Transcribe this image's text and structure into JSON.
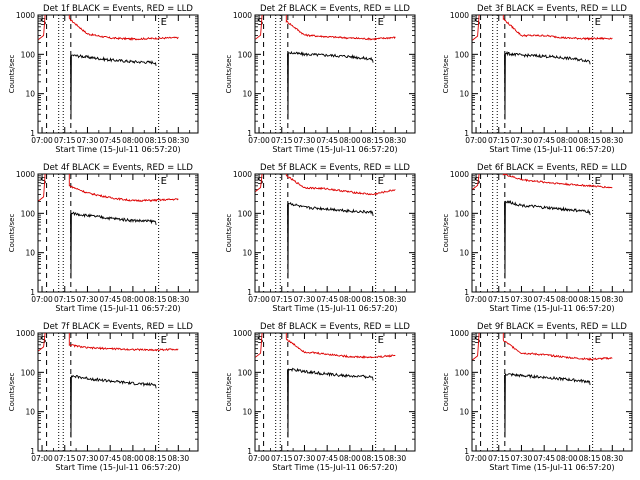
{
  "chart_data": [
    {
      "type": "line",
      "title": "Det 1f BLACK = Events, RED = LLD",
      "xlabel": "Start Time (15-Jul-11 06:57:20)",
      "ylabel": "Counts/sec",
      "y_scale": "log",
      "ylim": [
        1,
        1000
      ],
      "y_ticks": [
        "1",
        "10",
        "100",
        "1000"
      ],
      "x_ticks": [
        "07:00",
        "07:15",
        "07:30",
        "07:45",
        "08:00",
        "08:15",
        "08:30"
      ],
      "grid": false,
      "markers": {
        "start_label": "S",
        "end_label": "E"
      },
      "series": [
        {
          "color": "#dd0000",
          "shape": [
            {
              "t": "07:18",
              "v": 800
            },
            {
              "t": "07:30",
              "v": 330
            },
            {
              "t": "07:45",
              "v": 260
            },
            {
              "t": "08:00",
              "v": 245
            },
            {
              "t": "08:15",
              "v": 255
            },
            {
              "t": "08:30",
              "v": 265
            }
          ]
        },
        {
          "color": "#000000",
          "shape": [
            {
              "t": "07:20",
              "v": 95
            },
            {
              "t": "07:30",
              "v": 85
            },
            {
              "t": "07:45",
              "v": 72
            },
            {
              "t": "08:00",
              "v": 65
            },
            {
              "t": "08:15",
              "v": 62
            }
          ]
        }
      ]
    },
    {
      "type": "line",
      "title": "Det 2f BLACK = Events, RED = LLD",
      "xlabel": "Start Time (15-Jul-11 06:57:20)",
      "ylabel": "Counts/sec",
      "y_scale": "log",
      "ylim": [
        1,
        1000
      ],
      "y_ticks": [
        "1",
        "10",
        "100",
        "1000"
      ],
      "x_ticks": [
        "07:00",
        "07:15",
        "07:30",
        "07:45",
        "08:00",
        "08:15",
        "08:30"
      ],
      "grid": false,
      "markers": {
        "start_label": "S",
        "end_label": "E"
      },
      "series": [
        {
          "color": "#dd0000",
          "shape": [
            {
              "t": "07:18",
              "v": 700
            },
            {
              "t": "07:30",
              "v": 310
            },
            {
              "t": "07:45",
              "v": 280
            },
            {
              "t": "08:00",
              "v": 260
            },
            {
              "t": "08:15",
              "v": 245
            },
            {
              "t": "08:30",
              "v": 270
            }
          ]
        },
        {
          "color": "#000000",
          "shape": [
            {
              "t": "07:20",
              "v": 110
            },
            {
              "t": "07:30",
              "v": 100
            },
            {
              "t": "07:45",
              "v": 95
            },
            {
              "t": "08:00",
              "v": 88
            },
            {
              "t": "08:15",
              "v": 75
            }
          ]
        }
      ]
    },
    {
      "type": "line",
      "title": "Det 3f BLACK = Events, RED = LLD",
      "xlabel": "Start Time (15-Jul-11 06:57:20)",
      "ylabel": "Counts/sec",
      "y_scale": "log",
      "ylim": [
        1,
        1000
      ],
      "y_ticks": [
        "1",
        "10",
        "100",
        "1000"
      ],
      "x_ticks": [
        "07:00",
        "07:15",
        "07:30",
        "07:45",
        "08:00",
        "08:15",
        "08:30"
      ],
      "grid": false,
      "markers": {
        "start_label": "S",
        "end_label": "E"
      },
      "series": [
        {
          "color": "#dd0000",
          "shape": [
            {
              "t": "07:18",
              "v": 800
            },
            {
              "t": "07:30",
              "v": 300
            },
            {
              "t": "07:45",
              "v": 300
            },
            {
              "t": "08:00",
              "v": 260
            },
            {
              "t": "08:15",
              "v": 250
            },
            {
              "t": "08:30",
              "v": 255
            }
          ]
        },
        {
          "color": "#000000",
          "shape": [
            {
              "t": "07:20",
              "v": 105
            },
            {
              "t": "07:30",
              "v": 95
            },
            {
              "t": "07:45",
              "v": 90
            },
            {
              "t": "08:00",
              "v": 80
            },
            {
              "t": "08:15",
              "v": 68
            }
          ]
        }
      ]
    },
    {
      "type": "line",
      "title": "Det 4f BLACK = Events, RED = LLD",
      "xlabel": "Start Time (15-Jul-11 06:57:20)",
      "ylabel": "Counts/sec",
      "y_scale": "log",
      "ylim": [
        1,
        1000
      ],
      "y_ticks": [
        "1",
        "10",
        "100",
        "1000"
      ],
      "x_ticks": [
        "07:00",
        "07:15",
        "07:30",
        "07:45",
        "08:00",
        "08:15",
        "08:30"
      ],
      "grid": false,
      "markers": {
        "start_label": "S",
        "end_label": "E"
      },
      "series": [
        {
          "color": "#dd0000",
          "shape": [
            {
              "t": "07:18",
              "v": 500
            },
            {
              "t": "07:30",
              "v": 330
            },
            {
              "t": "07:45",
              "v": 250
            },
            {
              "t": "08:00",
              "v": 210
            },
            {
              "t": "08:15",
              "v": 215
            },
            {
              "t": "08:30",
              "v": 230
            }
          ]
        },
        {
          "color": "#000000",
          "shape": [
            {
              "t": "07:20",
              "v": 100
            },
            {
              "t": "07:30",
              "v": 88
            },
            {
              "t": "07:45",
              "v": 75
            },
            {
              "t": "08:00",
              "v": 66
            },
            {
              "t": "08:15",
              "v": 62
            }
          ]
        }
      ]
    },
    {
      "type": "line",
      "title": "Det 5f BLACK = Events, RED = LLD",
      "xlabel": "Start Time (15-Jul-11 06:57:20)",
      "ylabel": "Counts/sec",
      "y_scale": "log",
      "ylim": [
        1,
        1000
      ],
      "y_ticks": [
        "1",
        "10",
        "100",
        "1000"
      ],
      "x_ticks": [
        "07:00",
        "07:15",
        "07:30",
        "07:45",
        "08:00",
        "08:15",
        "08:30"
      ],
      "grid": false,
      "markers": {
        "start_label": "S",
        "end_label": "E"
      },
      "series": [
        {
          "color": "#dd0000",
          "shape": [
            {
              "t": "07:18",
              "v": 900
            },
            {
              "t": "07:30",
              "v": 450
            },
            {
              "t": "07:45",
              "v": 420
            },
            {
              "t": "08:00",
              "v": 350
            },
            {
              "t": "08:15",
              "v": 300
            },
            {
              "t": "08:30",
              "v": 400
            }
          ]
        },
        {
          "color": "#000000",
          "shape": [
            {
              "t": "07:20",
              "v": 180
            },
            {
              "t": "07:30",
              "v": 140
            },
            {
              "t": "07:45",
              "v": 130
            },
            {
              "t": "08:00",
              "v": 115
            },
            {
              "t": "08:15",
              "v": 105
            }
          ]
        }
      ]
    },
    {
      "type": "line",
      "title": "Det 6f BLACK = Events, RED = LLD",
      "xlabel": "Start Time (15-Jul-11 06:57:20)",
      "ylabel": "Counts/sec",
      "y_scale": "log",
      "ylim": [
        1,
        1000
      ],
      "y_ticks": [
        "1",
        "10",
        "100",
        "1000"
      ],
      "x_ticks": [
        "07:00",
        "07:15",
        "07:30",
        "07:45",
        "08:00",
        "08:15",
        "08:30"
      ],
      "grid": false,
      "markers": {
        "start_label": "S",
        "end_label": "E"
      },
      "series": [
        {
          "color": "#dd0000",
          "shape": [
            {
              "t": "07:18",
              "v": 1000
            },
            {
              "t": "07:30",
              "v": 720
            },
            {
              "t": "07:45",
              "v": 620
            },
            {
              "t": "08:00",
              "v": 550
            },
            {
              "t": "08:15",
              "v": 500
            },
            {
              "t": "08:30",
              "v": 450
            }
          ]
        },
        {
          "color": "#000000",
          "shape": [
            {
              "t": "07:20",
              "v": 200
            },
            {
              "t": "07:30",
              "v": 160
            },
            {
              "t": "07:45",
              "v": 140
            },
            {
              "t": "08:00",
              "v": 125
            },
            {
              "t": "08:15",
              "v": 110
            }
          ]
        }
      ]
    },
    {
      "type": "line",
      "title": "Det 7f BLACK = Events, RED = LLD",
      "xlabel": "Start Time (15-Jul-11 06:57:20)",
      "ylabel": "Counts/sec",
      "y_scale": "log",
      "ylim": [
        1,
        1000
      ],
      "y_ticks": [
        "1",
        "10",
        "100",
        "1000"
      ],
      "x_ticks": [
        "07:00",
        "07:15",
        "07:30",
        "07:45",
        "08:00",
        "08:15",
        "08:30"
      ],
      "grid": false,
      "markers": {
        "start_label": "S",
        "end_label": "E"
      },
      "series": [
        {
          "color": "#dd0000",
          "shape": [
            {
              "t": "07:18",
              "v": 500
            },
            {
              "t": "07:30",
              "v": 420
            },
            {
              "t": "07:45",
              "v": 400
            },
            {
              "t": "08:00",
              "v": 380
            },
            {
              "t": "08:15",
              "v": 370
            },
            {
              "t": "08:30",
              "v": 390
            }
          ]
        },
        {
          "color": "#000000",
          "shape": [
            {
              "t": "07:20",
              "v": 80
            },
            {
              "t": "07:30",
              "v": 70
            },
            {
              "t": "07:45",
              "v": 60
            },
            {
              "t": "08:00",
              "v": 52
            },
            {
              "t": "08:15",
              "v": 48
            }
          ]
        }
      ]
    },
    {
      "type": "line",
      "title": "Det 8f BLACK = Events, RED = LLD",
      "xlabel": "Start Time (15-Jul-11 06:57:20)",
      "ylabel": "Counts/sec",
      "y_scale": "log",
      "ylim": [
        1,
        1000
      ],
      "y_ticks": [
        "1",
        "10",
        "100",
        "1000"
      ],
      "x_ticks": [
        "07:00",
        "07:15",
        "07:30",
        "07:45",
        "08:00",
        "08:15",
        "08:30"
      ],
      "grid": false,
      "markers": {
        "start_label": "S",
        "end_label": "E"
      },
      "series": [
        {
          "color": "#dd0000",
          "shape": [
            {
              "t": "07:18",
              "v": 700
            },
            {
              "t": "07:30",
              "v": 330
            },
            {
              "t": "07:45",
              "v": 290
            },
            {
              "t": "08:00",
              "v": 250
            },
            {
              "t": "08:15",
              "v": 240
            },
            {
              "t": "08:30",
              "v": 270
            }
          ]
        },
        {
          "color": "#000000",
          "shape": [
            {
              "t": "07:20",
              "v": 120
            },
            {
              "t": "07:30",
              "v": 105
            },
            {
              "t": "07:45",
              "v": 90
            },
            {
              "t": "08:00",
              "v": 80
            },
            {
              "t": "08:15",
              "v": 76
            }
          ]
        }
      ]
    },
    {
      "type": "line",
      "title": "Det 9f BLACK = Events, RED = LLD",
      "xlabel": "Start Time (15-Jul-11 06:57:20)",
      "ylabel": "Counts/sec",
      "y_scale": "log",
      "ylim": [
        1,
        1000
      ],
      "y_ticks": [
        "1",
        "10",
        "100",
        "1000"
      ],
      "x_ticks": [
        "07:00",
        "07:15",
        "07:30",
        "07:45",
        "08:00",
        "08:15",
        "08:30"
      ],
      "grid": false,
      "markers": {
        "start_label": "S",
        "end_label": "E"
      },
      "series": [
        {
          "color": "#dd0000",
          "shape": [
            {
              "t": "07:18",
              "v": 650
            },
            {
              "t": "07:30",
              "v": 310
            },
            {
              "t": "07:45",
              "v": 280
            },
            {
              "t": "08:00",
              "v": 240
            },
            {
              "t": "08:15",
              "v": 215
            },
            {
              "t": "08:30",
              "v": 230
            }
          ]
        },
        {
          "color": "#000000",
          "shape": [
            {
              "t": "07:20",
              "v": 90
            },
            {
              "t": "07:30",
              "v": 82
            },
            {
              "t": "07:45",
              "v": 75
            },
            {
              "t": "08:00",
              "v": 66
            },
            {
              "t": "08:15",
              "v": 58
            }
          ]
        }
      ]
    }
  ]
}
